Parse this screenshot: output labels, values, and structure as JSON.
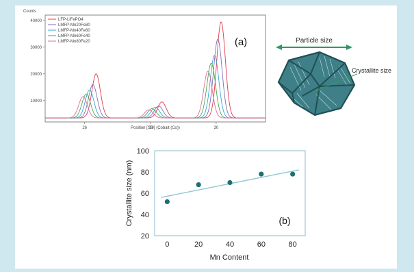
{
  "colors": {
    "page_background": "#cfe8f0",
    "panel_background": "#ffffff",
    "grain_fill": "#3f7f88",
    "grain_stroke": "#1f4f55",
    "arrow": "#2e9a62",
    "fit_line": "#8fc6d8",
    "points": "#1e6f72"
  },
  "figure": {
    "particle_label": "Particle size",
    "crystallite_label": "Crystallite size"
  },
  "chart_data": [
    {
      "type": "line",
      "panel_label": "(a)",
      "ylabel": "Counts",
      "xlabel": "Position [°2θ] (Cobalt (Co))",
      "xlim": [
        24.8,
        31.5
      ],
      "ylim": [
        2000,
        42000
      ],
      "xticks": [
        26,
        28,
        30
      ],
      "yticks": [
        10000,
        20000,
        30000,
        40000
      ],
      "grid": false,
      "legend_position": "top-left",
      "baseline": 3500,
      "series": [
        {
          "name": "LFP-LiFePO4",
          "color": "#e0394a",
          "peaks": [
            [
              26.35,
              20000
            ],
            [
              28.35,
              9500
            ],
            [
              30.15,
              39500
            ]
          ]
        },
        {
          "name": "LMFP-Mn20Fe80",
          "color": "#7f6fb0",
          "peaks": [
            [
              26.25,
              16000
            ],
            [
              28.25,
              8000
            ],
            [
              30.05,
              33000
            ]
          ]
        },
        {
          "name": "LMFP-Mn40Fe60",
          "color": "#3aa3d6",
          "peaks": [
            [
              26.15,
              14000
            ],
            [
              28.15,
              7500
            ],
            [
              29.95,
              27000
            ]
          ]
        },
        {
          "name": "LMFP-Mn60Fe40",
          "color": "#46a84a",
          "peaks": [
            [
              26.05,
              12500
            ],
            [
              28.05,
              7000
            ],
            [
              29.85,
              24000
            ]
          ]
        },
        {
          "name": "LMFP-Mn80Fe20",
          "color": "#e06a9a",
          "peaks": [
            [
              25.95,
              11500
            ],
            [
              27.95,
              6500
            ],
            [
              29.75,
              21000
            ]
          ]
        }
      ]
    },
    {
      "type": "scatter",
      "panel_label": "(b)",
      "xlabel": "Mn Content",
      "ylabel": "Crystallite size (nm)",
      "xlim": [
        -8,
        88
      ],
      "ylim": [
        20,
        100
      ],
      "xticks": [
        0,
        20,
        40,
        60,
        80
      ],
      "yticks": [
        20,
        40,
        60,
        80,
        100
      ],
      "x": [
        0,
        20,
        40,
        60,
        80
      ],
      "y": [
        52,
        68,
        70,
        78,
        78
      ],
      "trendline": [
        [
          -4,
          56
        ],
        [
          84,
          82
        ]
      ]
    }
  ]
}
